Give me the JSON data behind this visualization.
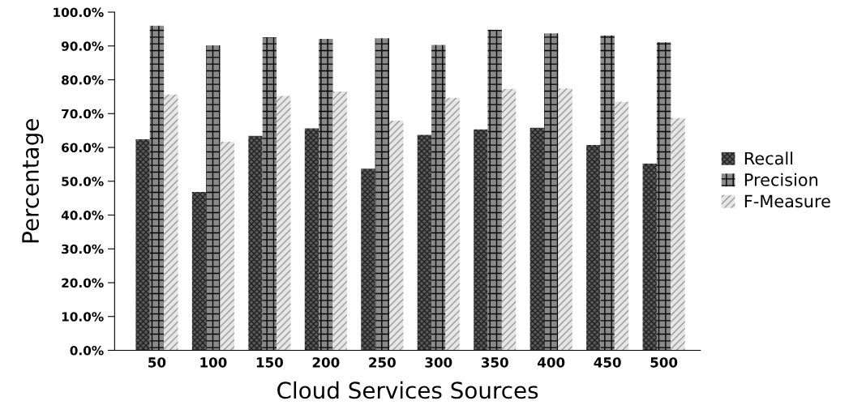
{
  "chart_data": {
    "type": "bar",
    "xlabel": "Cloud Services Sources",
    "ylabel": "Percentage",
    "categories": [
      "50",
      "100",
      "150",
      "200",
      "250",
      "300",
      "350",
      "400",
      "450",
      "500"
    ],
    "series": [
      {
        "name": "Recall",
        "color": "#5a5a5a",
        "values": [
          62.4,
          46.8,
          63.4,
          65.6,
          53.7,
          63.7,
          65.3,
          65.8,
          60.7,
          55.2
        ]
      },
      {
        "name": "Precision",
        "color": "#8a8a8a",
        "values": [
          96.0,
          90.2,
          92.6,
          92.1,
          92.3,
          90.3,
          94.8,
          93.7,
          93.1,
          91.1
        ]
      },
      {
        "name": "F-Measure",
        "color": "#e6e6e6",
        "values": [
          75.6,
          61.7,
          75.2,
          76.5,
          67.9,
          74.7,
          77.3,
          77.4,
          73.5,
          68.7
        ]
      }
    ],
    "ylim": [
      0,
      100
    ],
    "yticks": [
      {
        "value": 0,
        "label": "0.0%"
      },
      {
        "value": 10,
        "label": "10.0%"
      },
      {
        "value": 20,
        "label": "20.0%"
      },
      {
        "value": 30,
        "label": "30.0%"
      },
      {
        "value": 40,
        "label": "40.0%"
      },
      {
        "value": 50,
        "label": "50.0%"
      },
      {
        "value": 60,
        "label": "60.0%"
      },
      {
        "value": 70,
        "label": "70.0%"
      },
      {
        "value": 80,
        "label": "80.0%"
      },
      {
        "value": 90,
        "label": "90.0%"
      },
      {
        "value": 100,
        "label": "100.0%"
      }
    ],
    "grid": false,
    "legend": "right"
  }
}
